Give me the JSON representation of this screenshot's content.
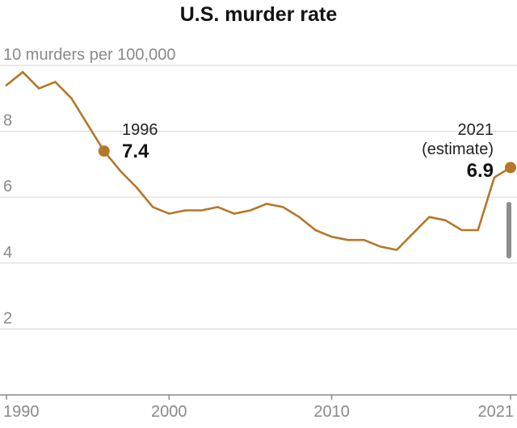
{
  "chart_data": {
    "type": "line",
    "title": "U.S. murder rate",
    "ylabel": "murders per 100,000",
    "top_tick_label": "10 murders per 100,000",
    "xlim": [
      1990,
      2021
    ],
    "ylim": [
      0,
      10
    ],
    "y_ticks": [
      {
        "value": 10,
        "label": "10 murders per 100,000"
      },
      {
        "value": 8,
        "label": "8"
      },
      {
        "value": 6,
        "label": "6"
      },
      {
        "value": 4,
        "label": "4"
      },
      {
        "value": 2,
        "label": "2"
      }
    ],
    "x_ticks": [
      {
        "value": 1990,
        "label": "1990"
      },
      {
        "value": 2000,
        "label": "2000"
      },
      {
        "value": 2010,
        "label": "2010"
      },
      {
        "value": 2021,
        "label": "2021"
      }
    ],
    "color": "#b57628",
    "grid": true,
    "series": [
      {
        "name": "U.S. murder rate",
        "x": [
          1990,
          1991,
          1992,
          1993,
          1994,
          1995,
          1996,
          1997,
          1998,
          1999,
          2000,
          2001,
          2002,
          2003,
          2004,
          2005,
          2006,
          2007,
          2008,
          2009,
          2010,
          2011,
          2012,
          2013,
          2014,
          2015,
          2016,
          2017,
          2018,
          2019,
          2020,
          2021
        ],
        "values": [
          9.4,
          9.8,
          9.3,
          9.5,
          9.0,
          8.2,
          7.4,
          6.8,
          6.3,
          5.7,
          5.5,
          5.6,
          5.6,
          5.7,
          5.5,
          5.6,
          5.8,
          5.7,
          5.4,
          5.0,
          4.8,
          4.7,
          4.7,
          4.5,
          4.4,
          4.9,
          5.4,
          5.3,
          5.0,
          5.0,
          6.6,
          6.9
        ]
      }
    ],
    "annotations": [
      {
        "x": 1996,
        "y": 7.4,
        "year_label": "1996",
        "value_label": "7.4"
      },
      {
        "x": 2021,
        "y": 6.9,
        "year_label": "2021",
        "note": "(estimate)",
        "value_label": "6.9"
      }
    ]
  },
  "scrollbar": {
    "color": "#8c8c8c"
  }
}
